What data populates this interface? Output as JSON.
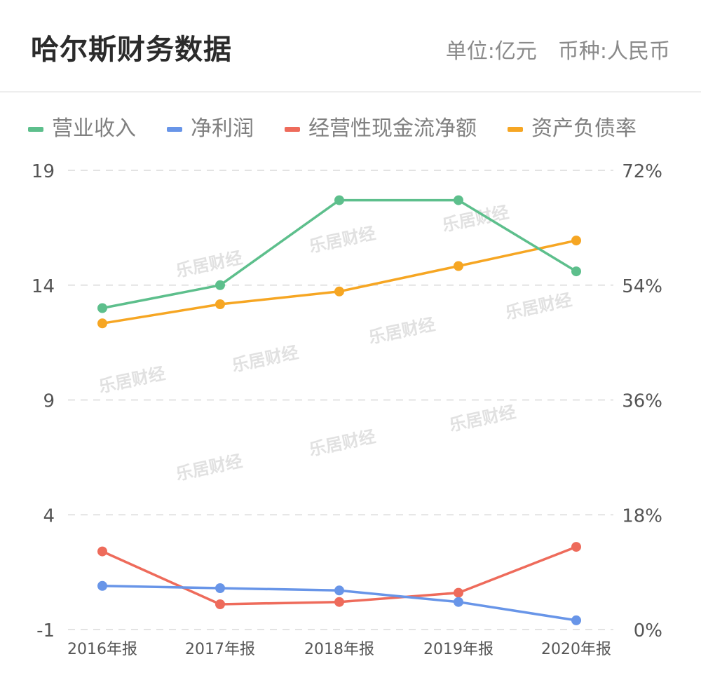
{
  "header": {
    "title": "哈尔斯财务数据",
    "unit": "单位:亿元",
    "currency": "币种:人民币"
  },
  "watermark": "乐居财经",
  "chart_data": {
    "type": "line",
    "categories": [
      "2016年报",
      "2017年报",
      "2018年报",
      "2019年报",
      "2020年报"
    ],
    "left_axis": {
      "ticks": [
        19,
        14,
        9,
        4,
        -1
      ],
      "range": [
        -1,
        19
      ]
    },
    "right_axis": {
      "ticks": [
        "72%",
        "54%",
        "36%",
        "18%",
        "0%"
      ],
      "range": [
        0,
        72
      ]
    },
    "grid": "horizontal dashed",
    "legend_position": "top-left",
    "series": [
      {
        "name": "营业收入",
        "axis": "left",
        "color": "#5dbf8c",
        "values": [
          13.0,
          14.0,
          17.7,
          17.7,
          14.6
        ]
      },
      {
        "name": "净利润",
        "axis": "left",
        "color": "#6895e8",
        "values": [
          0.9,
          0.8,
          0.7,
          0.2,
          -0.6
        ]
      },
      {
        "name": "经营性现金流净额",
        "axis": "left",
        "color": "#ee6b5b",
        "values": [
          2.4,
          0.1,
          0.2,
          0.6,
          2.6
        ]
      },
      {
        "name": "资产负债率",
        "axis": "right",
        "color": "#f6a623",
        "values": [
          48,
          51,
          53,
          57,
          61
        ]
      }
    ]
  }
}
